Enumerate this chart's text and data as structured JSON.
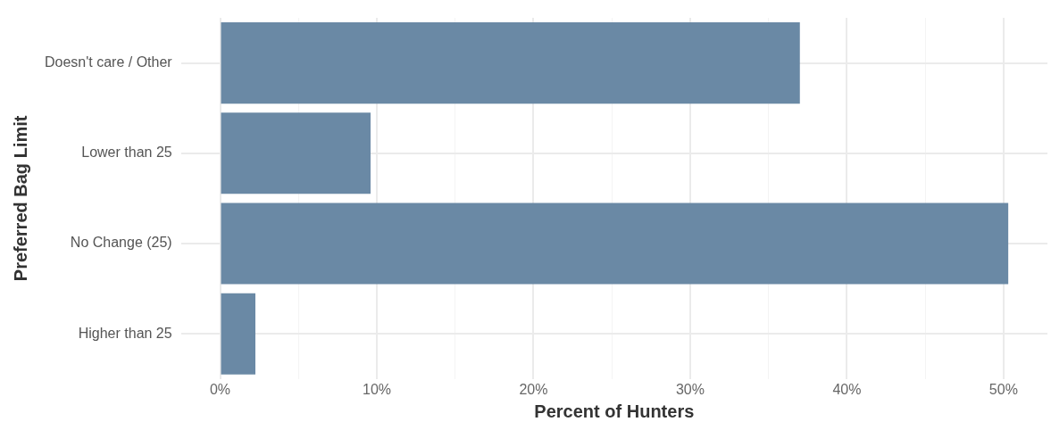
{
  "chart_data": {
    "type": "bar",
    "orientation": "horizontal",
    "xlabel": "Percent of Hunters",
    "ylabel": "Preferred Bag Limit",
    "categories": [
      "Doesn't care / Other",
      "Lower than 25",
      "No Change (25)",
      "Higher than 25"
    ],
    "values": [
      37.0,
      9.6,
      50.3,
      2.25
    ],
    "color": "#6a89a5",
    "xlim": [
      -2.5,
      52.8
    ],
    "xticks": [
      {
        "value": 0,
        "label": "0%"
      },
      {
        "value": 5,
        "label": null
      },
      {
        "value": 10,
        "label": "10%"
      },
      {
        "value": 15,
        "label": null
      },
      {
        "value": 20,
        "label": "20%"
      },
      {
        "value": 25,
        "label": null
      },
      {
        "value": 30,
        "label": "30%"
      },
      {
        "value": 35,
        "label": null
      },
      {
        "value": 40,
        "label": "40%"
      },
      {
        "value": 45,
        "label": null
      },
      {
        "value": 50,
        "label": "50%"
      }
    ],
    "grid": true,
    "legend": false
  }
}
